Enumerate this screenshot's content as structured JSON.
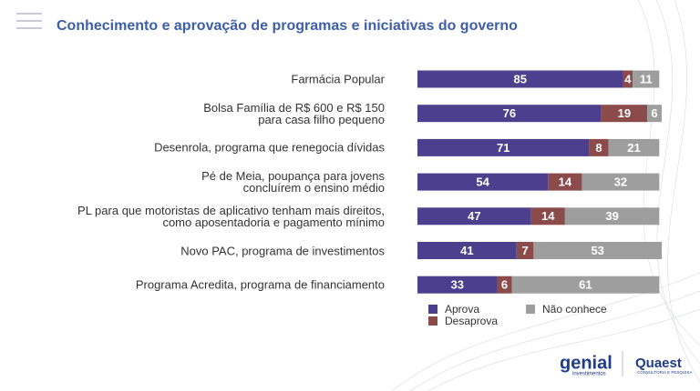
{
  "chart_data": {
    "type": "stacked-barh",
    "title": "Conhecimento e aprovação de programas e iniciativas do governo",
    "categories": [
      "Farmácia Popular",
      "Bolsa Família de R$ 600 e R$ 150\npara casa filho pequeno",
      "Desenrola, programa que renegocia dívidas",
      "Pé de Meia, poupança para jovens\nconcluírem o ensino médio",
      "PL para que motoristas de aplicativo tenham mais direitos,\ncomo aposentadoria e pagamento mínimo",
      "Novo PAC, programa de investimentos",
      "Programa Acredita, programa de financiamento"
    ],
    "series": [
      {
        "name": "Aprova",
        "color": "#4b3f8e",
        "values": [
          85,
          76,
          71,
          54,
          47,
          41,
          33
        ]
      },
      {
        "name": "Desaprova",
        "color": "#8c4b4b",
        "values": [
          4,
          19,
          8,
          14,
          14,
          7,
          6
        ]
      },
      {
        "name": "Não conhece",
        "color": "#9e9e9e",
        "values": [
          11,
          6,
          21,
          32,
          39,
          53,
          61
        ]
      }
    ]
  },
  "footer": {
    "logo1": "genial",
    "logo1_sub": "investimentos",
    "logo2": "Quaest",
    "logo2_sub": "CONSULTORIA E PESQUISA"
  }
}
